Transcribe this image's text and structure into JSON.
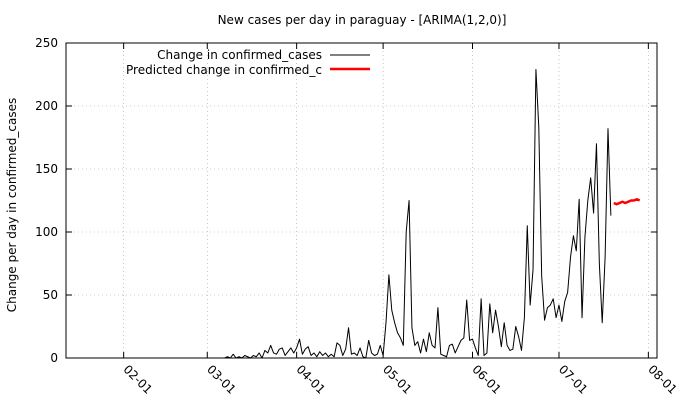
{
  "chart_data": {
    "type": "line",
    "title": "New cases per day in paraguay -  [ARIMA(1,2,0)]",
    "xlabel": "",
    "ylabel": "Change per day in confirmed_cases",
    "ylim": [
      0,
      250
    ],
    "xlim": [
      "2020-01-12",
      "2020-08-04"
    ],
    "y_ticks": [
      "0",
      "50",
      "100",
      "150",
      "200",
      "250"
    ],
    "x_ticks": [
      {
        "date": "2020-02-01",
        "label": "02-01"
      },
      {
        "date": "2020-03-01",
        "label": "03-01"
      },
      {
        "date": "2020-04-01",
        "label": "04-01"
      },
      {
        "date": "2020-05-01",
        "label": "05-01"
      },
      {
        "date": "2020-06-01",
        "label": "06-01"
      },
      {
        "date": "2020-07-01",
        "label": "07-01"
      },
      {
        "date": "2020-08-01",
        "label": "08-01"
      }
    ],
    "grid": true,
    "legend_position": "top-left",
    "series": [
      {
        "name": "Change in confirmed_cases",
        "color": "#000000",
        "points": [
          [
            "2020-03-07",
            0
          ],
          [
            "2020-03-08",
            1
          ],
          [
            "2020-03-09",
            0
          ],
          [
            "2020-03-10",
            3
          ],
          [
            "2020-03-11",
            0
          ],
          [
            "2020-03-12",
            1
          ],
          [
            "2020-03-13",
            0
          ],
          [
            "2020-03-14",
            2
          ],
          [
            "2020-03-15",
            1
          ],
          [
            "2020-03-16",
            0
          ],
          [
            "2020-03-17",
            2
          ],
          [
            "2020-03-18",
            1
          ],
          [
            "2020-03-19",
            4
          ],
          [
            "2020-03-20",
            0
          ],
          [
            "2020-03-21",
            6
          ],
          [
            "2020-03-22",
            4
          ],
          [
            "2020-03-23",
            10
          ],
          [
            "2020-03-24",
            4
          ],
          [
            "2020-03-25",
            3
          ],
          [
            "2020-03-26",
            7
          ],
          [
            "2020-03-27",
            8
          ],
          [
            "2020-03-28",
            2
          ],
          [
            "2020-03-29",
            5
          ],
          [
            "2020-03-30",
            8
          ],
          [
            "2020-03-31",
            4
          ],
          [
            "2020-04-01",
            8
          ],
          [
            "2020-04-02",
            15
          ],
          [
            "2020-04-03",
            3
          ],
          [
            "2020-04-04",
            7
          ],
          [
            "2020-04-05",
            9
          ],
          [
            "2020-04-06",
            2
          ],
          [
            "2020-04-07",
            4
          ],
          [
            "2020-04-08",
            1
          ],
          [
            "2020-04-09",
            5
          ],
          [
            "2020-04-10",
            2
          ],
          [
            "2020-04-11",
            4
          ],
          [
            "2020-04-12",
            1
          ],
          [
            "2020-04-13",
            3
          ],
          [
            "2020-04-14",
            1
          ],
          [
            "2020-04-15",
            12
          ],
          [
            "2020-04-16",
            10
          ],
          [
            "2020-04-17",
            2
          ],
          [
            "2020-04-18",
            7
          ],
          [
            "2020-04-19",
            24
          ],
          [
            "2020-04-20",
            3
          ],
          [
            "2020-04-21",
            4
          ],
          [
            "2020-04-22",
            2
          ],
          [
            "2020-04-23",
            8
          ],
          [
            "2020-04-24",
            1
          ],
          [
            "2020-04-25",
            0
          ],
          [
            "2020-04-26",
            14
          ],
          [
            "2020-04-27",
            4
          ],
          [
            "2020-04-28",
            2
          ],
          [
            "2020-04-29",
            3
          ],
          [
            "2020-04-30",
            10
          ],
          [
            "2020-05-01",
            2
          ],
          [
            "2020-05-02",
            28
          ],
          [
            "2020-05-03",
            66
          ],
          [
            "2020-05-04",
            38
          ],
          [
            "2020-05-05",
            28
          ],
          [
            "2020-05-06",
            20
          ],
          [
            "2020-05-07",
            16
          ],
          [
            "2020-05-08",
            10
          ],
          [
            "2020-05-09",
            100
          ],
          [
            "2020-05-10",
            125
          ],
          [
            "2020-05-11",
            24
          ],
          [
            "2020-05-12",
            10
          ],
          [
            "2020-05-13",
            13
          ],
          [
            "2020-05-14",
            4
          ],
          [
            "2020-05-15",
            15
          ],
          [
            "2020-05-16",
            5
          ],
          [
            "2020-05-17",
            20
          ],
          [
            "2020-05-18",
            10
          ],
          [
            "2020-05-19",
            8
          ],
          [
            "2020-05-20",
            40
          ],
          [
            "2020-05-21",
            3
          ],
          [
            "2020-05-22",
            2
          ],
          [
            "2020-05-23",
            1
          ],
          [
            "2020-05-24",
            10
          ],
          [
            "2020-05-25",
            11
          ],
          [
            "2020-05-26",
            4
          ],
          [
            "2020-05-27",
            9
          ],
          [
            "2020-05-28",
            14
          ],
          [
            "2020-05-29",
            16
          ],
          [
            "2020-05-30",
            46
          ],
          [
            "2020-05-31",
            14
          ],
          [
            "2020-06-01",
            15
          ],
          [
            "2020-06-02",
            8
          ],
          [
            "2020-06-03",
            2
          ],
          [
            "2020-06-04",
            47
          ],
          [
            "2020-06-05",
            2
          ],
          [
            "2020-06-06",
            4
          ],
          [
            "2020-06-07",
            43
          ],
          [
            "2020-06-08",
            20
          ],
          [
            "2020-06-09",
            38
          ],
          [
            "2020-06-10",
            25
          ],
          [
            "2020-06-11",
            9
          ],
          [
            "2020-06-12",
            28
          ],
          [
            "2020-06-13",
            10
          ],
          [
            "2020-06-14",
            6
          ],
          [
            "2020-06-15",
            7
          ],
          [
            "2020-06-16",
            25
          ],
          [
            "2020-06-17",
            17
          ],
          [
            "2020-06-18",
            6
          ],
          [
            "2020-06-19",
            32
          ],
          [
            "2020-06-20",
            105
          ],
          [
            "2020-06-21",
            42
          ],
          [
            "2020-06-22",
            70
          ],
          [
            "2020-06-23",
            229
          ],
          [
            "2020-06-24",
            183
          ],
          [
            "2020-06-25",
            65
          ],
          [
            "2020-06-26",
            30
          ],
          [
            "2020-06-27",
            40
          ],
          [
            "2020-06-28",
            42
          ],
          [
            "2020-06-29",
            47
          ],
          [
            "2020-06-30",
            32
          ],
          [
            "2020-07-01",
            42
          ],
          [
            "2020-07-02",
            29
          ],
          [
            "2020-07-03",
            45
          ],
          [
            "2020-07-04",
            52
          ],
          [
            "2020-07-05",
            80
          ],
          [
            "2020-07-06",
            97
          ],
          [
            "2020-07-07",
            85
          ],
          [
            "2020-07-08",
            126
          ],
          [
            "2020-07-09",
            32
          ],
          [
            "2020-07-10",
            96
          ],
          [
            "2020-07-11",
            125
          ],
          [
            "2020-07-12",
            143
          ],
          [
            "2020-07-13",
            115
          ],
          [
            "2020-07-14",
            170
          ],
          [
            "2020-07-15",
            75
          ],
          [
            "2020-07-16",
            28
          ],
          [
            "2020-07-17",
            80
          ],
          [
            "2020-07-18",
            182
          ],
          [
            "2020-07-19",
            113
          ]
        ]
      },
      {
        "name": "Predicted change in confirmed_c",
        "color": "#ff0000",
        "points": [
          [
            "2020-07-20",
            123
          ],
          [
            "2020-07-21",
            122
          ],
          [
            "2020-07-22",
            123
          ],
          [
            "2020-07-23",
            124
          ],
          [
            "2020-07-24",
            123
          ],
          [
            "2020-07-25",
            124
          ],
          [
            "2020-07-26",
            125
          ],
          [
            "2020-07-27",
            125
          ],
          [
            "2020-07-28",
            126
          ],
          [
            "2020-07-29",
            125
          ]
        ]
      }
    ]
  }
}
